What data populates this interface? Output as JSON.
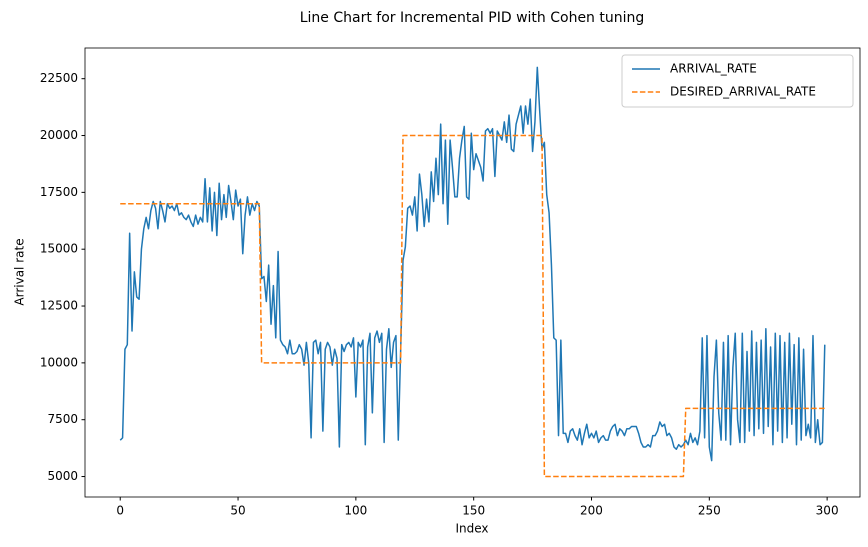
{
  "chart_data": {
    "type": "line",
    "title": "Line Chart for Incremental PID with Cohen tuning",
    "x_label": "Index",
    "y_label": "Arrival rate",
    "x": [
      0,
      1,
      2,
      3,
      4,
      5,
      6,
      7,
      8,
      9,
      10,
      11,
      12,
      13,
      14,
      15,
      16,
      17,
      18,
      19,
      20,
      21,
      22,
      23,
      24,
      25,
      26,
      27,
      28,
      29,
      30,
      31,
      32,
      33,
      34,
      35,
      36,
      37,
      38,
      39,
      40,
      41,
      42,
      43,
      44,
      45,
      46,
      47,
      48,
      49,
      50,
      51,
      52,
      53,
      54,
      55,
      56,
      57,
      58,
      59,
      60,
      61,
      62,
      63,
      64,
      65,
      66,
      67,
      68,
      69,
      70,
      71,
      72,
      73,
      74,
      75,
      76,
      77,
      78,
      79,
      80,
      81,
      82,
      83,
      84,
      85,
      86,
      87,
      88,
      89,
      90,
      91,
      92,
      93,
      94,
      95,
      96,
      97,
      98,
      99,
      100,
      101,
      102,
      103,
      104,
      105,
      106,
      107,
      108,
      109,
      110,
      111,
      112,
      113,
      114,
      115,
      116,
      117,
      118,
      119,
      120,
      121,
      122,
      123,
      124,
      125,
      126,
      127,
      128,
      129,
      130,
      131,
      132,
      133,
      134,
      135,
      136,
      137,
      138,
      139,
      140,
      141,
      142,
      143,
      144,
      145,
      146,
      147,
      148,
      149,
      150,
      151,
      152,
      153,
      154,
      155,
      156,
      157,
      158,
      159,
      160,
      161,
      162,
      163,
      164,
      165,
      166,
      167,
      168,
      169,
      170,
      171,
      172,
      173,
      174,
      175,
      176,
      177,
      178,
      179,
      180,
      181,
      182,
      183,
      184,
      185,
      186,
      187,
      188,
      189,
      190,
      191,
      192,
      193,
      194,
      195,
      196,
      197,
      198,
      199,
      200,
      201,
      202,
      203,
      204,
      205,
      206,
      207,
      208,
      209,
      210,
      211,
      212,
      213,
      214,
      215,
      216,
      217,
      218,
      219,
      220,
      221,
      222,
      223,
      224,
      225,
      226,
      227,
      228,
      229,
      230,
      231,
      232,
      233,
      234,
      235,
      236,
      237,
      238,
      239,
      240,
      241,
      242,
      243,
      244,
      245,
      246,
      247,
      248,
      249,
      250,
      251,
      252,
      253,
      254,
      255,
      256,
      257,
      258,
      259,
      260,
      261,
      262,
      263,
      264,
      265,
      266,
      267,
      268,
      269,
      270,
      271,
      272,
      273,
      274,
      275,
      276,
      277,
      278,
      279,
      280,
      281,
      282,
      283,
      284,
      285,
      286,
      287,
      288,
      289,
      290,
      291,
      292,
      293,
      294,
      295,
      296,
      297,
      298,
      299
    ],
    "series": [
      {
        "name": "ARRIVAL_RATE",
        "color": "#1f77b4",
        "linestyle": "solid",
        "values": [
          6600,
          6700,
          10600,
          10800,
          15700,
          11400,
          14000,
          12900,
          12800,
          15000,
          15900,
          16400,
          15900,
          16700,
          17100,
          16800,
          15900,
          17100,
          16700,
          16200,
          17000,
          16800,
          16900,
          16700,
          17000,
          16500,
          16600,
          16400,
          16300,
          16500,
          16200,
          16000,
          16500,
          16100,
          16400,
          16200,
          18100,
          16200,
          17700,
          15800,
          17500,
          15600,
          17900,
          16300,
          17400,
          16400,
          17800,
          17100,
          16300,
          17600,
          16900,
          17200,
          14800,
          16500,
          17300,
          16500,
          17000,
          16700,
          17100,
          16900,
          13700,
          13800,
          12700,
          14300,
          11700,
          13400,
          11100,
          14900,
          11000,
          10800,
          10700,
          10400,
          11000,
          10400,
          10400,
          10500,
          10800,
          10600,
          9900,
          10900,
          10000,
          6700,
          10900,
          11000,
          10400,
          10900,
          7000,
          10600,
          10900,
          10700,
          9900,
          10600,
          10200,
          6300,
          10800,
          10500,
          10800,
          10900,
          10700,
          11100,
          8500,
          10900,
          10700,
          11000,
          6400,
          10700,
          11300,
          7800,
          11100,
          11400,
          10900,
          11300,
          6500,
          10600,
          11500,
          9800,
          10900,
          11200,
          6600,
          10500,
          14500,
          15100,
          16800,
          16900,
          16500,
          17300,
          15800,
          18300,
          17400,
          16000,
          17200,
          16200,
          18400,
          17100,
          19000,
          17400,
          20500,
          17000,
          19800,
          16100,
          19800,
          18600,
          17300,
          17300,
          19000,
          19800,
          20400,
          17300,
          17200,
          20100,
          18500,
          19200,
          18900,
          18600,
          18000,
          20200,
          20300,
          20100,
          20300,
          18200,
          20200,
          20000,
          19800,
          20600,
          19700,
          20900,
          19400,
          19300,
          20500,
          20900,
          21300,
          20100,
          21300,
          20500,
          21600,
          19300,
          20600,
          23000,
          21100,
          19400,
          19700,
          17400,
          16600,
          14300,
          11100,
          11000,
          6800,
          11000,
          6900,
          6900,
          6500,
          7000,
          7100,
          6800,
          6600,
          7100,
          6400,
          6900,
          7300,
          6700,
          6900,
          6700,
          7000,
          6500,
          6700,
          6800,
          6600,
          6600,
          7000,
          7200,
          7300,
          6800,
          7100,
          7000,
          6800,
          7100,
          7100,
          7200,
          7200,
          7200,
          6900,
          6500,
          6300,
          6300,
          6400,
          6300,
          6800,
          6800,
          7000,
          7400,
          7200,
          7300,
          6800,
          6900,
          6700,
          6300,
          6200,
          6400,
          6300,
          6400,
          6600,
          6400,
          6900,
          6500,
          6700,
          6400,
          7000,
          11100,
          6700,
          11200,
          6300,
          5700,
          9400,
          11000,
          7800,
          6600,
          10900,
          6600,
          11200,
          6400,
          9800,
          11300,
          7500,
          6500,
          11300,
          6500,
          10500,
          7000,
          11400,
          6800,
          10900,
          7100,
          11000,
          6900,
          11500,
          7200,
          10700,
          6400,
          11300,
          7000,
          11200,
          6500,
          10900,
          6700,
          11300,
          7300,
          10800,
          6400,
          11100,
          6600,
          10600,
          6800,
          7300,
          6700,
          11200,
          6500,
          7500,
          6400,
          6500,
          10800
        ]
      },
      {
        "name": "DESIRED_ARRIVAL_RATE",
        "color": "#ff7f0e",
        "linestyle": "dashed",
        "values": [
          17000,
          17000,
          17000,
          17000,
          17000,
          17000,
          17000,
          17000,
          17000,
          17000,
          17000,
          17000,
          17000,
          17000,
          17000,
          17000,
          17000,
          17000,
          17000,
          17000,
          17000,
          17000,
          17000,
          17000,
          17000,
          17000,
          17000,
          17000,
          17000,
          17000,
          17000,
          17000,
          17000,
          17000,
          17000,
          17000,
          17000,
          17000,
          17000,
          17000,
          17000,
          17000,
          17000,
          17000,
          17000,
          17000,
          17000,
          17000,
          17000,
          17000,
          17000,
          17000,
          17000,
          17000,
          17000,
          17000,
          17000,
          17000,
          17000,
          17000,
          10000,
          10000,
          10000,
          10000,
          10000,
          10000,
          10000,
          10000,
          10000,
          10000,
          10000,
          10000,
          10000,
          10000,
          10000,
          10000,
          10000,
          10000,
          10000,
          10000,
          10000,
          10000,
          10000,
          10000,
          10000,
          10000,
          10000,
          10000,
          10000,
          10000,
          10000,
          10000,
          10000,
          10000,
          10000,
          10000,
          10000,
          10000,
          10000,
          10000,
          10000,
          10000,
          10000,
          10000,
          10000,
          10000,
          10000,
          10000,
          10000,
          10000,
          10000,
          10000,
          10000,
          10000,
          10000,
          10000,
          10000,
          10000,
          10000,
          10000,
          20000,
          20000,
          20000,
          20000,
          20000,
          20000,
          20000,
          20000,
          20000,
          20000,
          20000,
          20000,
          20000,
          20000,
          20000,
          20000,
          20000,
          20000,
          20000,
          20000,
          20000,
          20000,
          20000,
          20000,
          20000,
          20000,
          20000,
          20000,
          20000,
          20000,
          20000,
          20000,
          20000,
          20000,
          20000,
          20000,
          20000,
          20000,
          20000,
          20000,
          20000,
          20000,
          20000,
          20000,
          20000,
          20000,
          20000,
          20000,
          20000,
          20000,
          20000,
          20000,
          20000,
          20000,
          20000,
          20000,
          20000,
          20000,
          20000,
          20000,
          5000,
          5000,
          5000,
          5000,
          5000,
          5000,
          5000,
          5000,
          5000,
          5000,
          5000,
          5000,
          5000,
          5000,
          5000,
          5000,
          5000,
          5000,
          5000,
          5000,
          5000,
          5000,
          5000,
          5000,
          5000,
          5000,
          5000,
          5000,
          5000,
          5000,
          5000,
          5000,
          5000,
          5000,
          5000,
          5000,
          5000,
          5000,
          5000,
          5000,
          5000,
          5000,
          5000,
          5000,
          5000,
          5000,
          5000,
          5000,
          5000,
          5000,
          5000,
          5000,
          5000,
          5000,
          5000,
          5000,
          5000,
          5000,
          5000,
          5000,
          8000,
          8000,
          8000,
          8000,
          8000,
          8000,
          8000,
          8000,
          8000,
          8000,
          8000,
          8000,
          8000,
          8000,
          8000,
          8000,
          8000,
          8000,
          8000,
          8000,
          8000,
          8000,
          8000,
          8000,
          8000,
          8000,
          8000,
          8000,
          8000,
          8000,
          8000,
          8000,
          8000,
          8000,
          8000,
          8000,
          8000,
          8000,
          8000,
          8000,
          8000,
          8000,
          8000,
          8000,
          8000,
          8000,
          8000,
          8000,
          8000,
          8000,
          8000,
          8000,
          8000,
          8000,
          8000,
          8000,
          8000,
          8000,
          8000,
          8000
        ]
      }
    ],
    "xlim": [
      -14.95,
      313.95
    ],
    "xticks": [
      0,
      50,
      100,
      150,
      200,
      250,
      300
    ],
    "ylim": [
      4100,
      23850
    ],
    "yticks": [
      5000,
      7500,
      10000,
      12500,
      15000,
      17500,
      20000,
      22500
    ],
    "legend": "upper right",
    "grid": false
  }
}
